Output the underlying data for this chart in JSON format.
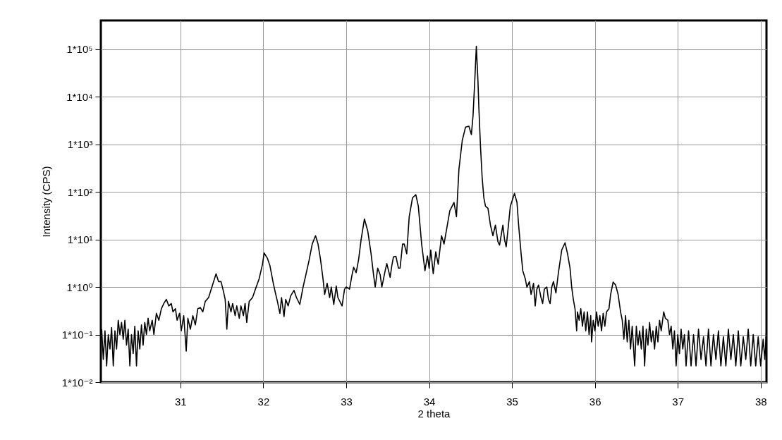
{
  "chart_data": {
    "type": "line",
    "xlabel": "2 theta",
    "ylabel": "Intensity (CPS)",
    "color": "#000000",
    "log": "y",
    "grid": true,
    "marker": "none",
    "line_style": "solid",
    "xlim": [
      30.04,
      38.07
    ],
    "xticks": [
      31,
      32,
      33,
      34,
      35,
      36,
      37,
      38
    ],
    "ylim": [
      0.01,
      400000
    ],
    "yticks": [
      {
        "value": 0.01,
        "label": "1*10⁻²"
      },
      {
        "value": 0.1,
        "label": "1*10⁻¹"
      },
      {
        "value": 1,
        "label": "1*10⁰"
      },
      {
        "value": 10,
        "label": "1*10¹"
      },
      {
        "value": 100,
        "label": "1*10²"
      },
      {
        "value": 1000,
        "label": "1*10³"
      },
      {
        "value": 10000,
        "label": "1*10⁴"
      },
      {
        "value": 100000,
        "label": "1*10⁵"
      }
    ],
    "x": [
      30.05,
      30.07,
      30.09,
      30.11,
      30.13,
      30.15,
      30.17,
      30.19,
      30.21,
      30.23,
      30.25,
      30.27,
      30.29,
      30.31,
      30.33,
      30.35,
      30.37,
      30.39,
      30.41,
      30.43,
      30.45,
      30.47,
      30.49,
      30.51,
      30.53,
      30.55,
      30.57,
      30.59,
      30.61,
      30.63,
      30.66,
      30.68,
      30.71,
      30.74,
      30.77,
      30.8,
      30.83,
      30.86,
      30.89,
      30.91,
      30.94,
      30.96,
      30.99,
      31.01,
      31.04,
      31.07,
      31.09,
      31.12,
      31.15,
      31.18,
      31.21,
      31.24,
      31.27,
      31.3,
      31.34,
      31.38,
      31.43,
      31.46,
      31.49,
      31.52,
      31.54,
      31.56,
      31.58,
      31.61,
      31.63,
      31.66,
      31.68,
      31.71,
      31.73,
      31.76,
      31.78,
      31.8,
      31.83,
      31.87,
      31.9,
      31.95,
      31.99,
      32.01,
      32.05,
      32.08,
      32.12,
      32.15,
      32.17,
      32.2,
      32.22,
      32.25,
      32.27,
      32.3,
      32.33,
      32.37,
      32.4,
      32.44,
      32.48,
      32.51,
      32.55,
      32.59,
      32.63,
      32.66,
      32.69,
      32.72,
      32.74,
      32.77,
      32.8,
      32.82,
      32.85,
      32.88,
      32.9,
      32.95,
      32.98,
      33.0,
      33.04,
      33.07,
      33.09,
      33.12,
      33.15,
      33.18,
      33.22,
      33.26,
      33.3,
      33.33,
      33.35,
      33.38,
      33.41,
      33.43,
      33.47,
      33.49,
      33.53,
      33.55,
      33.57,
      33.6,
      33.63,
      33.65,
      33.68,
      33.7,
      33.73,
      33.76,
      33.8,
      33.84,
      33.87,
      33.91,
      33.95,
      33.98,
      34.0,
      34.02,
      34.05,
      34.08,
      34.11,
      34.15,
      34.18,
      34.21,
      34.25,
      34.3,
      34.33,
      34.36,
      34.4,
      34.44,
      34.48,
      34.51,
      34.53,
      34.55,
      34.57,
      34.59,
      34.6,
      34.62,
      34.64,
      34.66,
      34.68,
      34.71,
      34.74,
      34.77,
      34.8,
      34.83,
      34.85,
      34.89,
      34.91,
      34.93,
      34.95,
      34.98,
      35.03,
      35.06,
      35.08,
      35.11,
      35.13,
      35.16,
      35.18,
      35.21,
      35.23,
      35.26,
      35.28,
      35.3,
      35.32,
      35.35,
      35.37,
      35.39,
      35.42,
      35.44,
      35.46,
      35.48,
      35.5,
      35.53,
      35.56,
      35.6,
      35.64,
      35.67,
      35.7,
      35.72,
      35.74,
      35.76,
      35.78,
      35.79,
      35.81,
      35.83,
      35.85,
      35.87,
      35.89,
      35.91,
      35.93,
      35.95,
      35.96,
      35.98,
      36.0,
      36.02,
      36.04,
      36.06,
      36.08,
      36.1,
      36.12,
      36.14,
      36.17,
      36.19,
      36.22,
      36.25,
      36.28,
      36.31,
      36.33,
      36.35,
      36.37,
      36.39,
      36.41,
      36.43,
      36.45,
      36.48,
      36.5,
      36.52,
      36.54,
      36.56,
      36.58,
      36.6,
      36.62,
      36.64,
      36.66,
      36.68,
      36.7,
      36.72,
      36.74,
      36.76,
      36.78,
      36.8,
      36.83,
      36.85,
      36.88,
      36.9,
      36.92,
      36.94,
      36.96,
      36.98,
      37.0,
      37.02,
      37.04,
      37.06,
      37.08,
      37.1,
      37.13,
      37.16,
      37.19,
      37.22,
      37.25,
      37.28,
      37.31,
      37.34,
      37.37,
      37.4,
      37.43,
      37.46,
      37.49,
      37.52,
      37.55,
      37.58,
      37.61,
      37.64,
      37.67,
      37.7,
      37.73,
      37.76,
      37.79,
      37.82,
      37.85,
      37.88,
      37.91,
      37.94,
      37.97,
      38.0,
      38.03,
      38.05,
      38.07
    ],
    "values": [
      0.13,
      0.03,
      0.12,
      0.022,
      0.1,
      0.05,
      0.14,
      0.022,
      0.12,
      0.05,
      0.2,
      0.1,
      0.18,
      0.08,
      0.2,
      0.06,
      0.13,
      0.022,
      0.1,
      0.04,
      0.15,
      0.022,
      0.12,
      0.05,
      0.16,
      0.06,
      0.18,
      0.1,
      0.22,
      0.12,
      0.2,
      0.1,
      0.28,
      0.2,
      0.35,
      0.45,
      0.55,
      0.4,
      0.45,
      0.3,
      0.35,
      0.2,
      0.28,
      0.12,
      0.25,
      0.045,
      0.22,
      0.13,
      0.25,
      0.16,
      0.35,
      0.37,
      0.3,
      0.5,
      0.6,
      1.0,
      1.9,
      1.3,
      1.3,
      0.8,
      0.55,
      0.13,
      0.5,
      0.3,
      0.45,
      0.25,
      0.4,
      0.22,
      0.4,
      0.25,
      0.45,
      0.18,
      0.5,
      0.6,
      0.85,
      1.5,
      3,
      5.2,
      4,
      2.8,
      1.2,
      0.7,
      0.5,
      0.28,
      0.6,
      0.24,
      0.55,
      0.4,
      0.65,
      0.85,
      0.6,
      0.43,
      1.0,
      1.7,
      3.5,
      8,
      12,
      8,
      3.8,
      1.5,
      0.7,
      1.2,
      0.6,
      1.0,
      0.43,
      1.05,
      0.6,
      0.4,
      0.9,
      1.0,
      0.9,
      1.8,
      2.6,
      2.0,
      3.8,
      10,
      27,
      15,
      5,
      1.8,
      1.0,
      2.5,
      1.8,
      1.0,
      2.2,
      3.1,
      1.6,
      2.8,
      4.3,
      4.4,
      2.5,
      2.5,
      8,
      8,
      5,
      30,
      75,
      87,
      50,
      8,
      2.2,
      4.5,
      2.5,
      6,
      1.9,
      5.5,
      3,
      12,
      8,
      16,
      40,
      60,
      30,
      300,
      1200,
      2300,
      2400,
      1600,
      4000,
      20000,
      115000,
      20000,
      6000,
      900,
      200,
      76,
      50,
      45,
      20,
      12,
      20,
      9,
      7.6,
      20,
      10,
      7,
      15,
      50,
      93,
      60,
      20,
      5,
      2.2,
      1.5,
      0.99,
      1.3,
      0.7,
      1.2,
      0.4,
      0.9,
      1.1,
      0.6,
      0.45,
      0.9,
      1.0,
      0.55,
      0.45,
      1.0,
      1.3,
      0.75,
      2,
      6,
      8.5,
      5,
      2.5,
      1.0,
      0.55,
      0.35,
      0.12,
      0.3,
      0.2,
      0.35,
      0.15,
      0.3,
      0.12,
      0.3,
      0.1,
      0.25,
      0.07,
      0.2,
      0.12,
      0.3,
      0.15,
      0.25,
      0.12,
      0.28,
      0.15,
      0.3,
      0.35,
      0.7,
      1.27,
      1.1,
      0.7,
      0.3,
      0.2,
      0.08,
      0.25,
      0.07,
      0.2,
      0.05,
      0.15,
      0.022,
      0.15,
      0.06,
      0.12,
      0.05,
      0.15,
      0.022,
      0.13,
      0.06,
      0.18,
      0.07,
      0.12,
      0.05,
      0.15,
      0.07,
      0.2,
      0.12,
      0.3,
      0.22,
      0.2,
      0.1,
      0.15,
      0.05,
      0.12,
      0.022,
      0.1,
      0.04,
      0.13,
      0.05,
      0.1,
      0.022,
      0.12,
      0.022,
      0.1,
      0.022,
      0.13,
      0.03,
      0.09,
      0.022,
      0.13,
      0.022,
      0.1,
      0.03,
      0.12,
      0.022,
      0.09,
      0.022,
      0.13,
      0.03,
      0.1,
      0.022,
      0.12,
      0.022,
      0.09,
      0.03,
      0.13,
      0.022,
      0.1,
      0.022,
      0.09,
      0.022,
      0.08,
      0.03,
      0.13
    ]
  }
}
